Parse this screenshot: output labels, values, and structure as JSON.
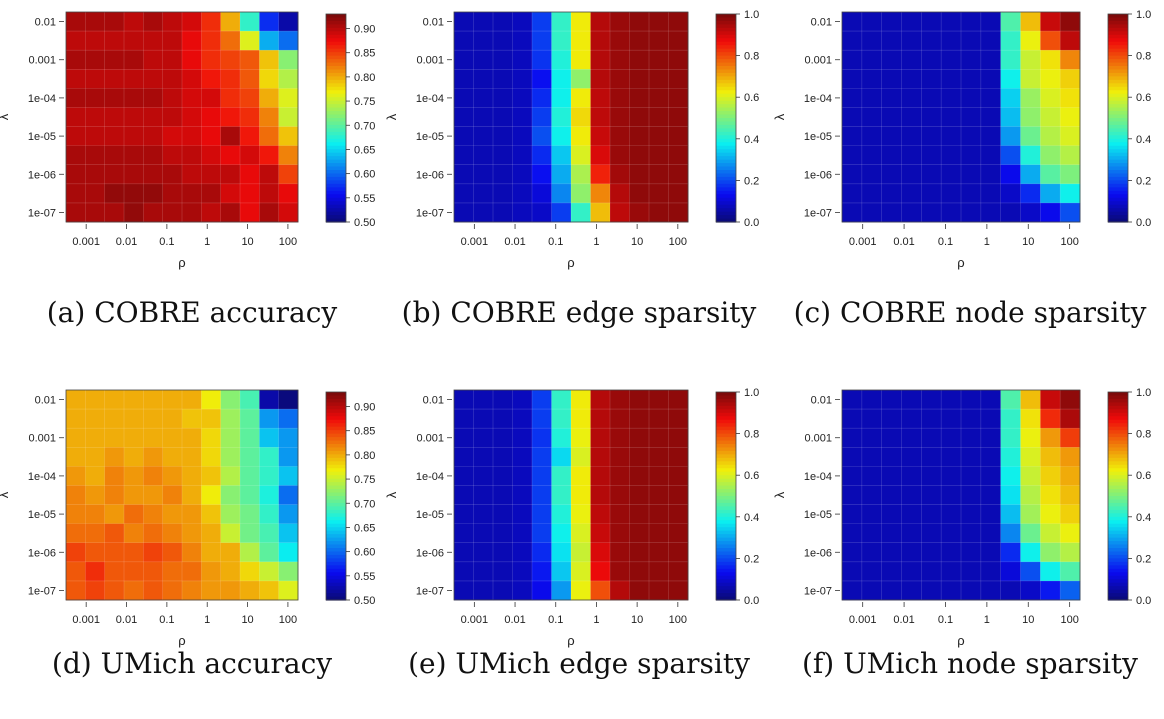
{
  "chart_data": [
    {
      "type": "heatmap",
      "caption": "(a) COBRE accuracy",
      "xlabel": "ρ",
      "ylabel": "λ",
      "xticks": [
        "0.001",
        "0.01",
        "0.1",
        "1",
        "10",
        "100"
      ],
      "yticks": [
        "0.01",
        "0.001",
        "1e-04",
        "1e-05",
        "1e-06",
        "1e-07"
      ],
      "x_range_log10": [
        -3.5,
        2.25
      ],
      "y_range_log10": [
        -7.25,
        -1.75
      ],
      "colorbar": {
        "range": [
          0.5,
          0.93
        ],
        "ticks": [
          "0.90",
          "0.85",
          "0.80",
          "0.75",
          "0.70",
          "0.65",
          "0.60",
          "0.55",
          "0.50"
        ],
        "scale": "jet"
      },
      "rows_top_to_bottom": [
        [
          0.91,
          0.91,
          0.91,
          0.9,
          0.91,
          0.9,
          0.89,
          0.86,
          0.8,
          0.68,
          0.57,
          0.52
        ],
        [
          0.9,
          0.9,
          0.9,
          0.9,
          0.9,
          0.9,
          0.88,
          0.86,
          0.83,
          0.76,
          0.63,
          0.6
        ],
        [
          0.91,
          0.91,
          0.91,
          0.91,
          0.9,
          0.9,
          0.88,
          0.86,
          0.85,
          0.84,
          0.79,
          0.72
        ],
        [
          0.9,
          0.9,
          0.9,
          0.9,
          0.9,
          0.9,
          0.89,
          0.87,
          0.86,
          0.84,
          0.78,
          0.74
        ],
        [
          0.91,
          0.91,
          0.91,
          0.91,
          0.91,
          0.9,
          0.89,
          0.89,
          0.86,
          0.85,
          0.8,
          0.76
        ],
        [
          0.9,
          0.9,
          0.9,
          0.9,
          0.9,
          0.9,
          0.89,
          0.88,
          0.87,
          0.86,
          0.82,
          0.75
        ],
        [
          0.9,
          0.9,
          0.9,
          0.9,
          0.9,
          0.89,
          0.89,
          0.88,
          0.91,
          0.87,
          0.83,
          0.79
        ],
        [
          0.91,
          0.91,
          0.91,
          0.91,
          0.91,
          0.9,
          0.9,
          0.89,
          0.88,
          0.89,
          0.87,
          0.82
        ],
        [
          0.91,
          0.91,
          0.91,
          0.91,
          0.91,
          0.91,
          0.9,
          0.9,
          0.9,
          0.88,
          0.9,
          0.85
        ],
        [
          0.91,
          0.91,
          0.92,
          0.92,
          0.92,
          0.91,
          0.91,
          0.91,
          0.89,
          0.88,
          0.9,
          0.88
        ],
        [
          0.91,
          0.91,
          0.91,
          0.92,
          0.91,
          0.91,
          0.91,
          0.9,
          0.91,
          0.88,
          0.91,
          0.89
        ]
      ]
    },
    {
      "type": "heatmap",
      "caption": "(b) COBRE edge sparsity",
      "xlabel": "ρ",
      "ylabel": "λ",
      "xticks": [
        "0.001",
        "0.01",
        "0.1",
        "1",
        "10",
        "100"
      ],
      "yticks": [
        "0.01",
        "0.001",
        "1e-04",
        "1e-05",
        "1e-06",
        "1e-07"
      ],
      "x_range_log10": [
        -3.5,
        2.25
      ],
      "y_range_log10": [
        -7.25,
        -1.75
      ],
      "colorbar": {
        "range": [
          0,
          1
        ],
        "ticks": [
          "1.0",
          "0.8",
          "0.6",
          "0.4",
          "0.2",
          "0.0"
        ],
        "scale": "jet"
      },
      "rows_top_to_bottom": [
        [
          0.06,
          0.06,
          0.06,
          0.07,
          0.18,
          0.42,
          0.63,
          0.94,
          0.97,
          0.98,
          0.98,
          0.98
        ],
        [
          0.06,
          0.06,
          0.06,
          0.07,
          0.18,
          0.42,
          0.63,
          0.94,
          0.97,
          0.98,
          0.98,
          0.98
        ],
        [
          0.06,
          0.06,
          0.06,
          0.07,
          0.17,
          0.4,
          0.63,
          0.94,
          0.97,
          0.98,
          0.98,
          0.98
        ],
        [
          0.06,
          0.06,
          0.06,
          0.07,
          0.13,
          0.38,
          0.52,
          0.94,
          0.97,
          0.98,
          0.98,
          0.98
        ],
        [
          0.06,
          0.06,
          0.06,
          0.07,
          0.16,
          0.38,
          0.63,
          0.93,
          0.97,
          0.98,
          0.98,
          0.98
        ],
        [
          0.06,
          0.06,
          0.06,
          0.07,
          0.18,
          0.4,
          0.65,
          0.93,
          0.97,
          0.98,
          0.98,
          0.98
        ],
        [
          0.06,
          0.06,
          0.06,
          0.07,
          0.2,
          0.38,
          0.63,
          0.92,
          0.97,
          0.98,
          0.98,
          0.98
        ],
        [
          0.06,
          0.06,
          0.06,
          0.07,
          0.16,
          0.33,
          0.6,
          0.9,
          0.97,
          0.98,
          0.98,
          0.98
        ],
        [
          0.06,
          0.06,
          0.06,
          0.07,
          0.13,
          0.3,
          0.55,
          0.85,
          0.96,
          0.98,
          0.98,
          0.98
        ],
        [
          0.06,
          0.06,
          0.06,
          0.07,
          0.1,
          0.26,
          0.52,
          0.74,
          0.94,
          0.98,
          0.98,
          0.98
        ],
        [
          0.06,
          0.06,
          0.06,
          0.07,
          0.08,
          0.18,
          0.42,
          0.68,
          0.93,
          0.97,
          0.98,
          0.98
        ]
      ]
    },
    {
      "type": "heatmap",
      "caption": "(c) COBRE node sparsity",
      "xlabel": "ρ",
      "ylabel": "λ",
      "xticks": [
        "0.001",
        "0.01",
        "0.1",
        "1",
        "10",
        "100"
      ],
      "yticks": [
        "0.01",
        "0.001",
        "1e-04",
        "1e-05",
        "1e-06",
        "1e-07"
      ],
      "x_range_log10": [
        -3.5,
        2.25
      ],
      "y_range_log10": [
        -7.25,
        -1.75
      ],
      "colorbar": {
        "range": [
          0,
          1
        ],
        "ticks": [
          "1.0",
          "0.8",
          "0.6",
          "0.4",
          "0.2",
          "0.0"
        ],
        "scale": "jet"
      },
      "rows_top_to_bottom": [
        [
          0.06,
          0.06,
          0.06,
          0.06,
          0.06,
          0.06,
          0.06,
          0.06,
          0.45,
          0.68,
          0.92,
          0.98
        ],
        [
          0.06,
          0.06,
          0.06,
          0.06,
          0.06,
          0.06,
          0.06,
          0.06,
          0.42,
          0.62,
          0.8,
          0.93
        ],
        [
          0.06,
          0.06,
          0.06,
          0.06,
          0.06,
          0.06,
          0.06,
          0.06,
          0.42,
          0.58,
          0.64,
          0.74
        ],
        [
          0.06,
          0.06,
          0.06,
          0.06,
          0.06,
          0.06,
          0.06,
          0.06,
          0.38,
          0.58,
          0.62,
          0.66
        ],
        [
          0.06,
          0.06,
          0.06,
          0.06,
          0.06,
          0.06,
          0.06,
          0.06,
          0.34,
          0.53,
          0.6,
          0.64
        ],
        [
          0.06,
          0.06,
          0.06,
          0.06,
          0.06,
          0.06,
          0.06,
          0.06,
          0.32,
          0.52,
          0.58,
          0.62
        ],
        [
          0.06,
          0.06,
          0.06,
          0.06,
          0.06,
          0.06,
          0.06,
          0.06,
          0.28,
          0.48,
          0.56,
          0.6
        ],
        [
          0.06,
          0.06,
          0.06,
          0.06,
          0.06,
          0.06,
          0.06,
          0.06,
          0.2,
          0.4,
          0.52,
          0.56
        ],
        [
          0.06,
          0.06,
          0.06,
          0.06,
          0.06,
          0.06,
          0.06,
          0.06,
          0.12,
          0.3,
          0.46,
          0.5
        ],
        [
          0.06,
          0.06,
          0.06,
          0.06,
          0.06,
          0.06,
          0.06,
          0.06,
          0.08,
          0.16,
          0.3,
          0.38
        ],
        [
          0.06,
          0.06,
          0.06,
          0.06,
          0.06,
          0.06,
          0.06,
          0.06,
          0.06,
          0.08,
          0.12,
          0.2
        ]
      ]
    },
    {
      "type": "heatmap",
      "caption": "(d) UMich accuracy",
      "xlabel": "ρ",
      "ylabel": "λ",
      "xticks": [
        "0.001",
        "0.01",
        "0.1",
        "1",
        "10",
        "100"
      ],
      "yticks": [
        "0.01",
        "0.001",
        "1e-04",
        "1e-05",
        "1e-06",
        "1e-07"
      ],
      "x_range_log10": [
        -3.5,
        2.25
      ],
      "y_range_log10": [
        -7.25,
        -1.75
      ],
      "colorbar": {
        "range": [
          0.5,
          0.93
        ],
        "ticks": [
          "0.90",
          "0.85",
          "0.80",
          "0.75",
          "0.70",
          "0.65",
          "0.60",
          "0.55",
          "0.50"
        ],
        "scale": "jet"
      },
      "rows_top_to_bottom": [
        [
          0.8,
          0.8,
          0.8,
          0.8,
          0.8,
          0.8,
          0.8,
          0.77,
          0.72,
          0.69,
          0.52,
          0.5
        ],
        [
          0.8,
          0.8,
          0.8,
          0.8,
          0.8,
          0.8,
          0.79,
          0.79,
          0.73,
          0.7,
          0.62,
          0.6
        ],
        [
          0.8,
          0.8,
          0.8,
          0.8,
          0.8,
          0.8,
          0.8,
          0.78,
          0.73,
          0.7,
          0.64,
          0.62
        ],
        [
          0.8,
          0.8,
          0.81,
          0.8,
          0.81,
          0.8,
          0.8,
          0.78,
          0.73,
          0.7,
          0.68,
          0.62
        ],
        [
          0.81,
          0.8,
          0.82,
          0.81,
          0.82,
          0.81,
          0.8,
          0.79,
          0.74,
          0.7,
          0.68,
          0.64
        ],
        [
          0.82,
          0.81,
          0.82,
          0.81,
          0.81,
          0.82,
          0.8,
          0.77,
          0.72,
          0.7,
          0.67,
          0.6
        ],
        [
          0.82,
          0.82,
          0.81,
          0.83,
          0.82,
          0.81,
          0.81,
          0.79,
          0.73,
          0.71,
          0.68,
          0.62
        ],
        [
          0.83,
          0.83,
          0.84,
          0.82,
          0.83,
          0.82,
          0.81,
          0.8,
          0.75,
          0.71,
          0.69,
          0.64
        ],
        [
          0.85,
          0.84,
          0.84,
          0.84,
          0.85,
          0.84,
          0.82,
          0.8,
          0.8,
          0.74,
          0.7,
          0.66
        ],
        [
          0.84,
          0.86,
          0.84,
          0.84,
          0.84,
          0.83,
          0.83,
          0.81,
          0.8,
          0.78,
          0.75,
          0.72
        ],
        [
          0.84,
          0.85,
          0.84,
          0.83,
          0.84,
          0.83,
          0.82,
          0.81,
          0.81,
          0.8,
          0.79,
          0.76
        ]
      ]
    },
    {
      "type": "heatmap",
      "caption": "(e) UMich edge sparsity",
      "xlabel": "ρ",
      "ylabel": "λ",
      "xticks": [
        "0.001",
        "0.01",
        "0.1",
        "1",
        "10",
        "100"
      ],
      "yticks": [
        "0.01",
        "0.001",
        "1e-04",
        "1e-05",
        "1e-06",
        "1e-07"
      ],
      "x_range_log10": [
        -3.5,
        2.25
      ],
      "y_range_log10": [
        -7.25,
        -1.75
      ],
      "colorbar": {
        "range": [
          0,
          1
        ],
        "ticks": [
          "1.0",
          "0.8",
          "0.6",
          "0.4",
          "0.2",
          "0.0"
        ],
        "scale": "jet"
      },
      "rows_top_to_bottom": [
        [
          0.06,
          0.06,
          0.06,
          0.07,
          0.18,
          0.42,
          0.63,
          0.94,
          0.97,
          0.98,
          0.98,
          0.98
        ],
        [
          0.06,
          0.06,
          0.06,
          0.07,
          0.18,
          0.42,
          0.63,
          0.94,
          0.97,
          0.98,
          0.98,
          0.98
        ],
        [
          0.06,
          0.06,
          0.06,
          0.07,
          0.17,
          0.4,
          0.62,
          0.94,
          0.97,
          0.98,
          0.98,
          0.98
        ],
        [
          0.06,
          0.06,
          0.06,
          0.07,
          0.18,
          0.35,
          0.6,
          0.94,
          0.97,
          0.98,
          0.98,
          0.98
        ],
        [
          0.06,
          0.06,
          0.06,
          0.07,
          0.18,
          0.42,
          0.63,
          0.94,
          0.97,
          0.98,
          0.98,
          0.98
        ],
        [
          0.06,
          0.06,
          0.06,
          0.07,
          0.18,
          0.42,
          0.63,
          0.94,
          0.97,
          0.98,
          0.98,
          0.98
        ],
        [
          0.06,
          0.06,
          0.06,
          0.07,
          0.18,
          0.4,
          0.62,
          0.93,
          0.97,
          0.98,
          0.98,
          0.98
        ],
        [
          0.06,
          0.06,
          0.06,
          0.07,
          0.18,
          0.38,
          0.6,
          0.92,
          0.97,
          0.98,
          0.98,
          0.98
        ],
        [
          0.06,
          0.06,
          0.06,
          0.07,
          0.16,
          0.36,
          0.58,
          0.9,
          0.97,
          0.98,
          0.98,
          0.98
        ],
        [
          0.06,
          0.06,
          0.06,
          0.07,
          0.14,
          0.33,
          0.6,
          0.88,
          0.97,
          0.98,
          0.98,
          0.98
        ],
        [
          0.06,
          0.06,
          0.06,
          0.07,
          0.12,
          0.28,
          0.62,
          0.8,
          0.94,
          0.98,
          0.98,
          0.98
        ]
      ]
    },
    {
      "type": "heatmap",
      "caption": "(f) UMich node sparsity",
      "xlabel": "ρ",
      "ylabel": "λ",
      "xticks": [
        "0.001",
        "0.01",
        "0.1",
        "1",
        "10",
        "100"
      ],
      "yticks": [
        "0.01",
        "0.001",
        "1e-04",
        "1e-05",
        "1e-06",
        "1e-07"
      ],
      "x_range_log10": [
        -3.5,
        2.25
      ],
      "y_range_log10": [
        -7.25,
        -1.75
      ],
      "colorbar": {
        "range": [
          0,
          1
        ],
        "ticks": [
          "1.0",
          "0.8",
          "0.6",
          "0.4",
          "0.2",
          "0.0"
        ],
        "scale": "jet"
      },
      "rows_top_to_bottom": [
        [
          0.06,
          0.06,
          0.06,
          0.06,
          0.06,
          0.06,
          0.06,
          0.06,
          0.45,
          0.68,
          0.92,
          0.98
        ],
        [
          0.06,
          0.06,
          0.06,
          0.06,
          0.06,
          0.06,
          0.06,
          0.06,
          0.42,
          0.64,
          0.84,
          0.95
        ],
        [
          0.06,
          0.06,
          0.06,
          0.06,
          0.06,
          0.06,
          0.06,
          0.06,
          0.42,
          0.62,
          0.72,
          0.82
        ],
        [
          0.06,
          0.06,
          0.06,
          0.06,
          0.06,
          0.06,
          0.06,
          0.06,
          0.4,
          0.6,
          0.68,
          0.72
        ],
        [
          0.06,
          0.06,
          0.06,
          0.06,
          0.06,
          0.06,
          0.06,
          0.06,
          0.38,
          0.58,
          0.66,
          0.7
        ],
        [
          0.06,
          0.06,
          0.06,
          0.06,
          0.06,
          0.06,
          0.06,
          0.06,
          0.36,
          0.56,
          0.64,
          0.68
        ],
        [
          0.06,
          0.06,
          0.06,
          0.06,
          0.06,
          0.06,
          0.06,
          0.06,
          0.32,
          0.54,
          0.62,
          0.66
        ],
        [
          0.06,
          0.06,
          0.06,
          0.06,
          0.06,
          0.06,
          0.06,
          0.06,
          0.26,
          0.48,
          0.58,
          0.62
        ],
        [
          0.06,
          0.06,
          0.06,
          0.06,
          0.06,
          0.06,
          0.06,
          0.06,
          0.16,
          0.38,
          0.52,
          0.56
        ],
        [
          0.06,
          0.06,
          0.06,
          0.06,
          0.06,
          0.06,
          0.06,
          0.06,
          0.1,
          0.2,
          0.38,
          0.45
        ],
        [
          0.06,
          0.06,
          0.06,
          0.06,
          0.06,
          0.06,
          0.06,
          0.06,
          0.06,
          0.08,
          0.14,
          0.22
        ]
      ]
    }
  ]
}
